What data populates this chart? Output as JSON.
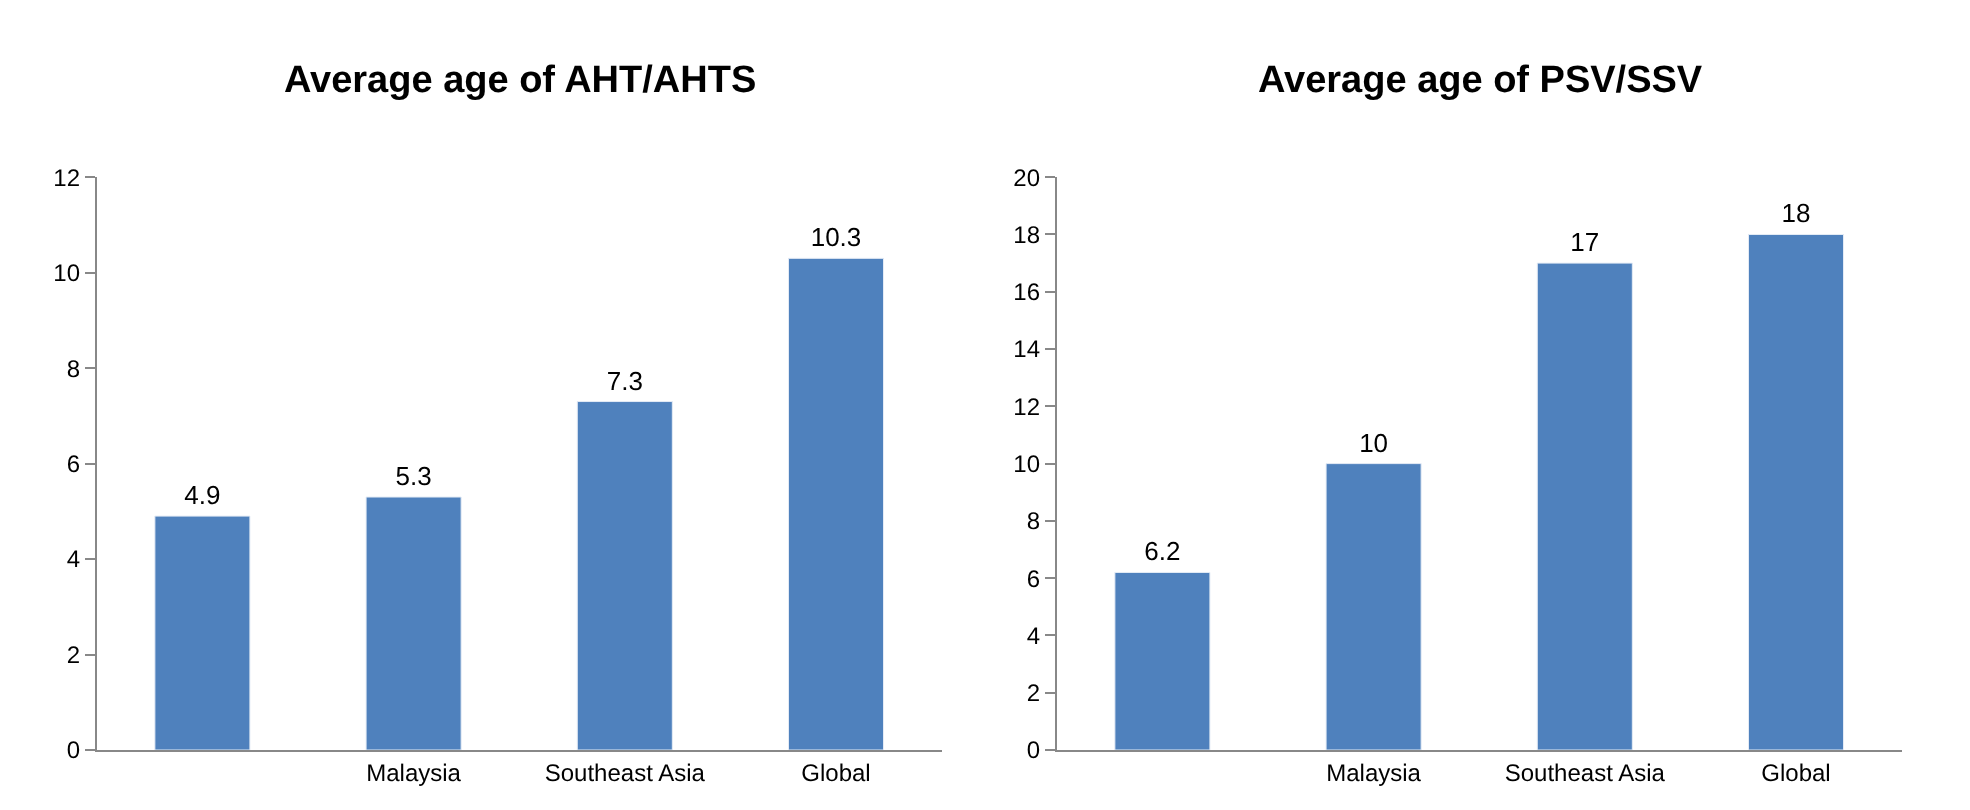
{
  "chart_data": [
    {
      "type": "bar",
      "title": "Average age of AHT/AHTS",
      "categories": [
        null,
        "Malaysia",
        "Southeast Asia",
        "Global"
      ],
      "values": [
        4.9,
        5.3,
        7.3,
        10.3
      ],
      "color": "#4f81bd",
      "ylim": [
        0,
        12
      ],
      "yticks": [
        0,
        2,
        4,
        6,
        8,
        10,
        12
      ],
      "data_labels": true
    },
    {
      "type": "bar",
      "title": "Average age of PSV/SSV",
      "categories": [
        null,
        "Malaysia",
        "Southeast Asia",
        "Global"
      ],
      "values": [
        6.2,
        10,
        17,
        18
      ],
      "color": "#4f81bd",
      "ylim": [
        0,
        20
      ],
      "yticks": [
        0,
        2,
        4,
        6,
        8,
        10,
        12,
        14,
        16,
        18,
        20
      ],
      "data_labels": true
    }
  ]
}
